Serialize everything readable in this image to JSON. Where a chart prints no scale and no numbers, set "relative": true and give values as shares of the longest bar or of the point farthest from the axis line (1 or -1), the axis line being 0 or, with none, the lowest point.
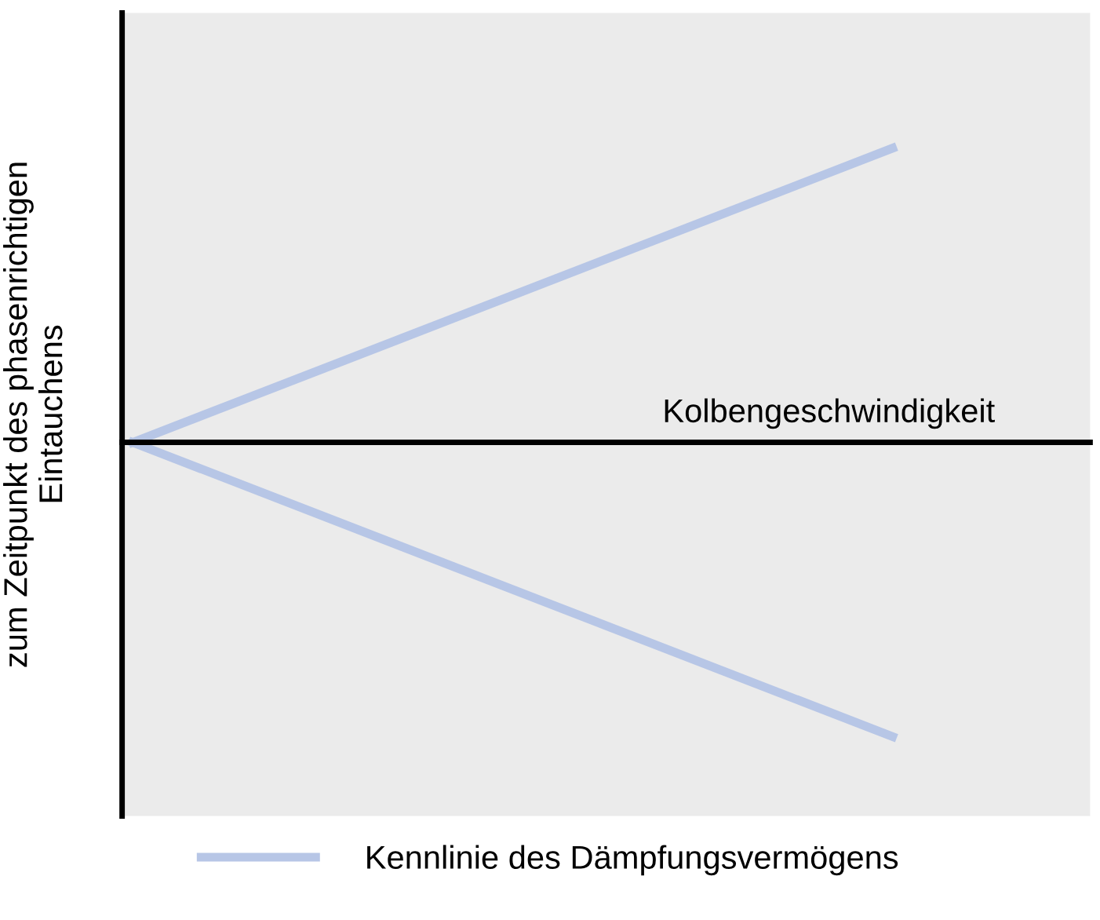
{
  "chart_data": {
    "type": "line",
    "relative": true,
    "categories": [
      null,
      null
    ],
    "xlabel": "Kolbengeschwindigkeit",
    "ylabel": "zum Zeitpunkt des phasenrichtigen\nEintauchens",
    "series": [
      {
        "name": "Kennlinie des Dämpfungsvermögens",
        "color": "#b7c6e6",
        "values": [
          0,
          1
        ]
      },
      {
        "color": "#b7c6e6",
        "values": [
          0,
          -1
        ]
      }
    ],
    "legend": "bottom"
  }
}
